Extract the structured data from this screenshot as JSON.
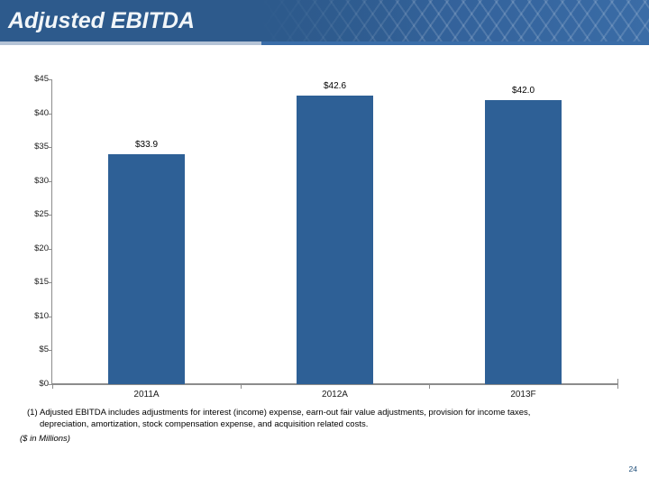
{
  "header": {
    "title": "Adjusted EBITDA"
  },
  "chart_data": {
    "type": "bar",
    "title": "Adjusted EBITDA",
    "categories": [
      "2011A",
      "2012A",
      "2013F"
    ],
    "values": [
      33.9,
      42.6,
      42.0
    ],
    "data_labels": [
      "$33.9",
      "$42.6",
      "$42.0"
    ],
    "y_ticks": [
      "$45",
      "$40",
      "$35",
      "$30",
      "$25",
      "$20",
      "$15",
      "$10",
      "$5",
      "$0"
    ],
    "ylim": [
      0,
      45
    ],
    "xlabel": "",
    "ylabel": "",
    "units": "$ in Millions",
    "grid": false,
    "legend": false,
    "bar_color": "#2e6096",
    "axis_color": "#8c8c8c"
  },
  "footnote": {
    "marker": "(1)",
    "text": "Adjusted EBITDA includes adjustments for interest (income) expense, earn-out fair value adjustments, provision for income taxes, depreciation, amortization, stock compensation expense, and acquisition related costs.",
    "units_note": "($ in Millions)"
  },
  "footer": {
    "page_number": "24"
  },
  "colors": {
    "banner_blue": "#2d5a8c",
    "banner_blue_light": "#3a6ca6",
    "accent_light": "#b4c3d6",
    "accent_blue": "#3a6da8",
    "page_number_blue": "#1f4e79"
  }
}
